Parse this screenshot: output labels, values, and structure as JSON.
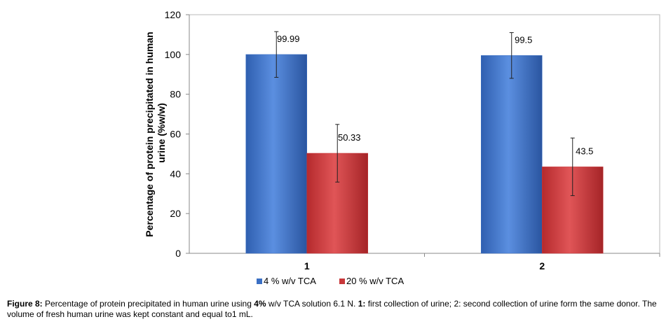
{
  "chart_data": {
    "type": "bar",
    "categories": [
      "1",
      "2"
    ],
    "series": [
      {
        "name": "4 % w/v TCA",
        "values": [
          99.99,
          99.5
        ],
        "error": [
          11.5,
          11.5
        ],
        "color": "#3a6fc4"
      },
      {
        "name": "20 % w/v TCA",
        "values": [
          50.33,
          43.5
        ],
        "error": [
          14.5,
          14.5
        ],
        "color": "#c8373a"
      }
    ],
    "data_labels": [
      [
        "99.99",
        "99.5"
      ],
      [
        "50.33",
        "43.5"
      ]
    ],
    "ylabel_line1": "Percentage of protein precipitated in human",
    "ylabel_line2": "urine (%w/w)",
    "ylim": [
      0,
      120
    ],
    "yticks": [
      0,
      20,
      40,
      60,
      80,
      100,
      120
    ],
    "grid": false,
    "legend_position": "bottom"
  },
  "caption": {
    "bold_lead": "Figure 8:",
    "text_a": " Percentage of protein precipitated in human urine using ",
    "bold_a": "4%",
    "text_b": " w/v TCA solution 6.1 N. ",
    "bold_b": "1:",
    "text_c": " first collection of urine; 2: second collection of urine form the same donor. The volume of fresh human urine was kept constant and equal to1 mL."
  }
}
